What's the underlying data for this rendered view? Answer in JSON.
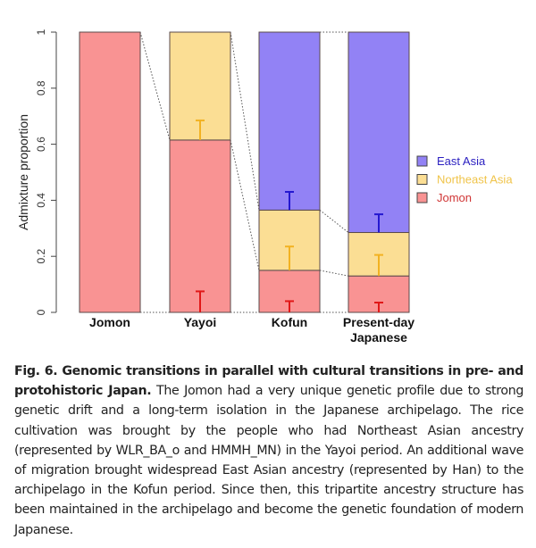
{
  "chart_data": {
    "type": "bar",
    "stacked": true,
    "ylabel": "Admixture proportion",
    "ylim": [
      0,
      1
    ],
    "yticks": [
      "0",
      "0.2",
      "0.4",
      "0.6",
      "0.8",
      "1"
    ],
    "categories": [
      "Jomon",
      "Yayoi",
      "Kofun",
      "Present-day Japanese"
    ],
    "series": [
      {
        "name": "Jomon",
        "color": "#F99393",
        "error_color": "#E01818",
        "values": [
          1.0,
          0.615,
          0.15,
          0.13
        ],
        "errorbar_upper": [
          null,
          0.075,
          0.04,
          0.035
        ]
      },
      {
        "name": "Northeast Asia",
        "color": "#FBDE94",
        "error_color": "#F2B222",
        "values": [
          0,
          0.385,
          0.215,
          0.155
        ],
        "errorbar_upper": [
          null,
          0.685,
          0.235,
          0.205
        ]
      },
      {
        "name": "East Asia",
        "color": "#9282F5",
        "error_color": "#2418D0",
        "values": [
          0,
          0,
          0.635,
          0.715
        ],
        "errorbar_upper": [
          null,
          null,
          0.43,
          0.35
        ]
      }
    ],
    "legend": {
      "placement": "right",
      "items": [
        {
          "label": "East Asia",
          "text_color": "#2A1FC0"
        },
        {
          "label": "Northeast Asia",
          "text_color": "#F0C44A"
        },
        {
          "label": "Jomon",
          "text_color": "#D03535"
        }
      ]
    },
    "grid": false
  },
  "caption": {
    "title": "Fig. 6. Genomic transitions in parallel with cultural transitions in pre- and protohistoric Japan.",
    "body": " The Jomon had a very unique genetic profile due to strong genetic drift and a long-term isolation in the Japanese archipelago. The rice cultivation was brought by the people who had Northeast Asian ancestry (represented by WLR_BA_o and HMMH_MN) in the Yayoi period. An additional wave of migration brought widespread East Asian ancestry (represented by Han) to the archipelago in the Kofun period. Since then, this tripartite ancestry structure has been maintained in the archipelago and become the genetic foundation of modern Japanese."
  }
}
